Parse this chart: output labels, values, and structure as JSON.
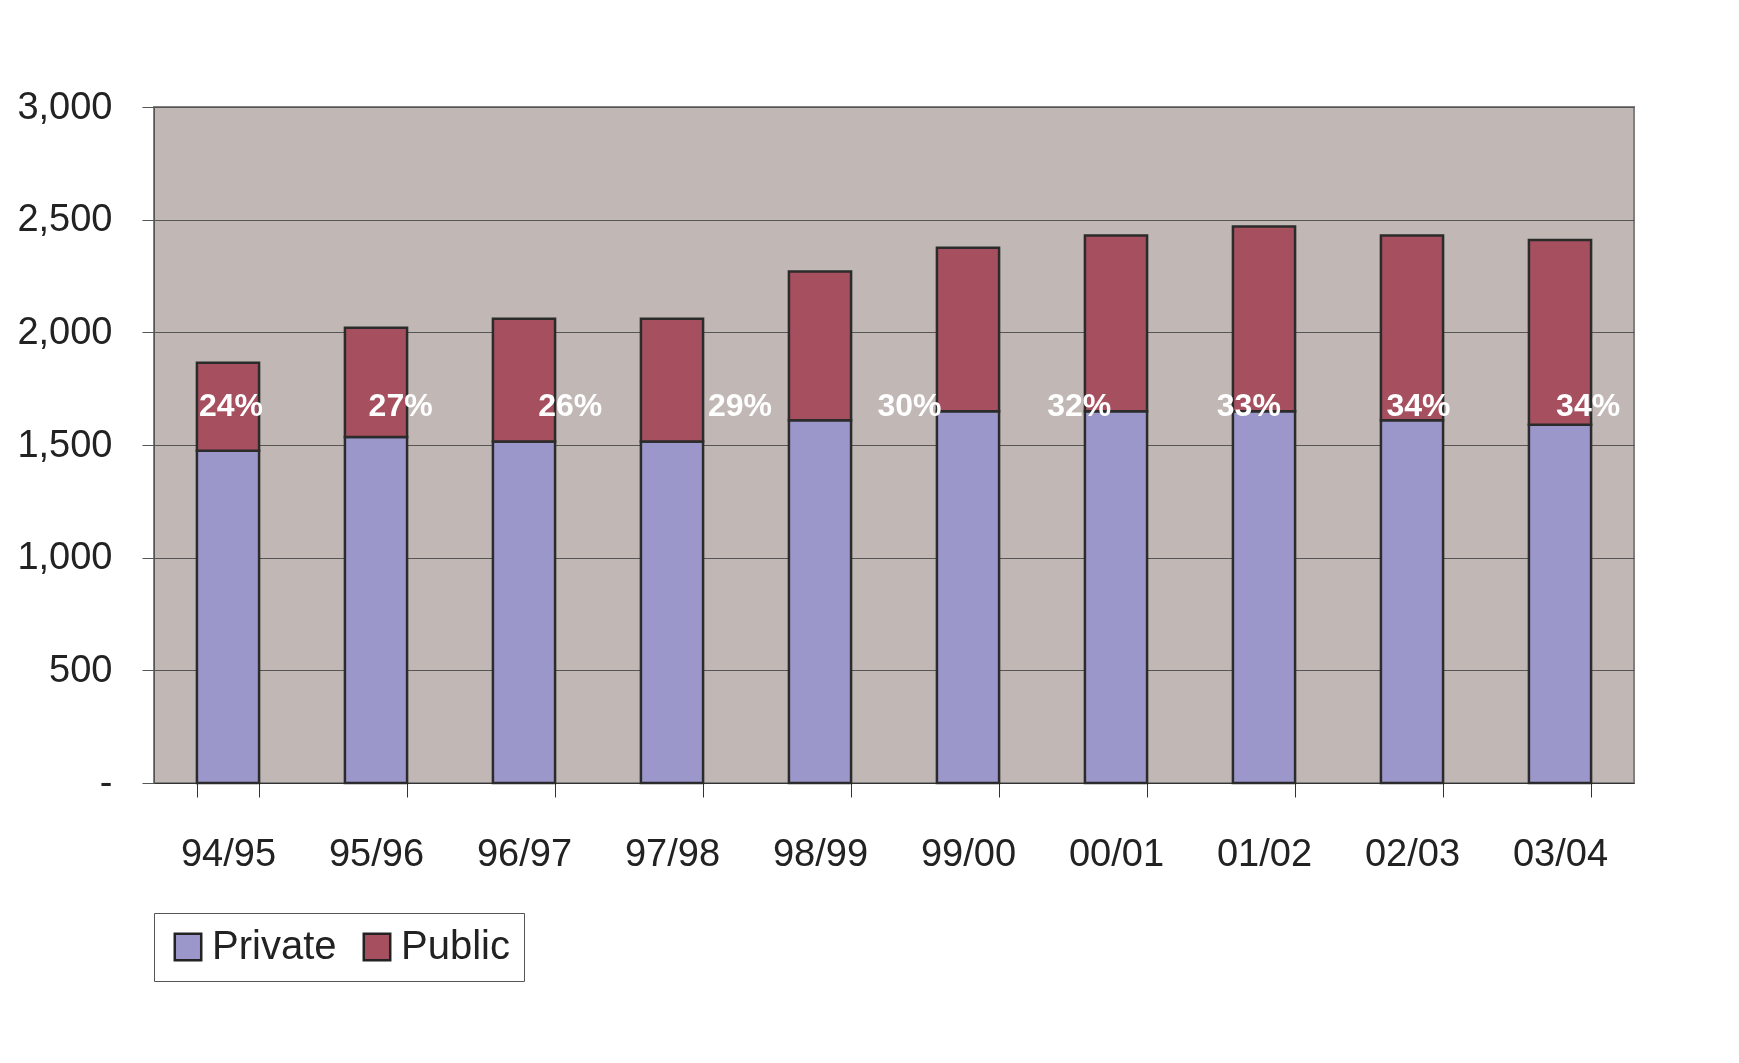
{
  "chart_data": {
    "type": "bar",
    "stacked": true,
    "categories": [
      "94/95",
      "95/96",
      "96/97",
      "97/98",
      "98/99",
      "99/00",
      "00/01",
      "01/02",
      "02/03",
      "03/04"
    ],
    "series": [
      {
        "name": "Private",
        "color": "#9b97cb",
        "values": [
          1475,
          1535,
          1515,
          1515,
          1610,
          1650,
          1650,
          1650,
          1610,
          1590
        ]
      },
      {
        "name": "Public",
        "color": "#a64f5f",
        "values": [
          390,
          485,
          545,
          545,
          660,
          725,
          780,
          820,
          820,
          820
        ]
      }
    ],
    "annotations": [
      "24%",
      "27%",
      "26%",
      "29%",
      "30%",
      "32%",
      "33%",
      "34%",
      "34%"
    ],
    "ylim": [
      0,
      3000
    ],
    "yticks": [
      {
        "value": 0,
        "label": "-"
      },
      {
        "value": 500,
        "label": "500"
      },
      {
        "value": 1000,
        "label": "1,000"
      },
      {
        "value": 1500,
        "label": "1,500"
      },
      {
        "value": 2000,
        "label": "2,000"
      },
      {
        "value": 2500,
        "label": "2,500"
      },
      {
        "value": 3000,
        "label": "3,000"
      }
    ],
    "grid": "y",
    "legend": "bottom"
  }
}
